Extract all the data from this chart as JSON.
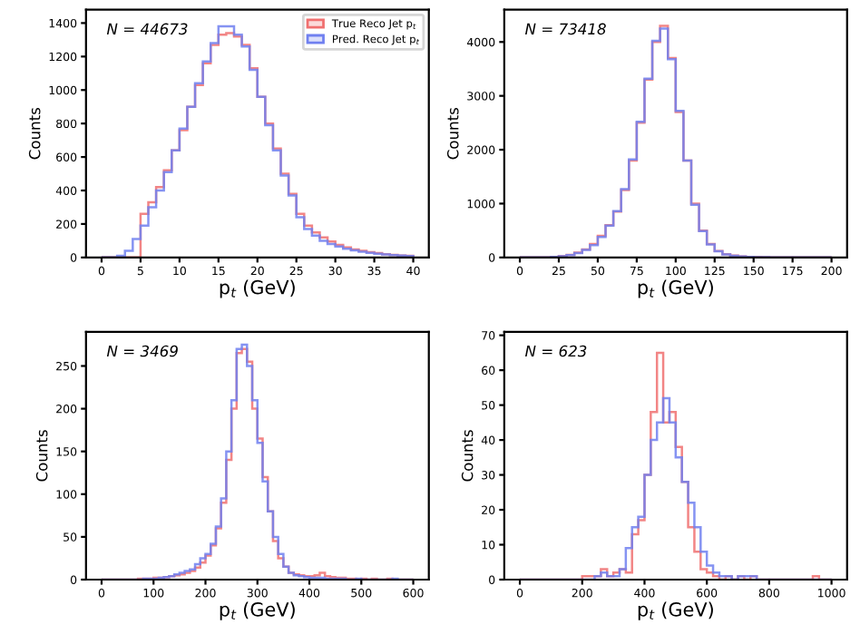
{
  "chart_data": [
    {
      "type": "histogram",
      "xlabel": "p$_{t}$ (GeV)",
      "ylabel": "Counts",
      "annotations": [
        "N = 44673"
      ],
      "xlim": [
        -2,
        42
      ],
      "xticks": [
        0,
        5,
        10,
        15,
        20,
        25,
        30,
        35,
        40
      ],
      "ylim": [
        0,
        1480
      ],
      "yticks": [
        0,
        200,
        400,
        600,
        800,
        1000,
        1200,
        1400
      ],
      "grid": false,
      "legend": "top right",
      "bins": [
        0,
        1,
        2,
        3,
        4,
        5,
        6,
        7,
        8,
        9,
        10,
        11,
        12,
        13,
        14,
        15,
        16,
        17,
        18,
        19,
        20,
        21,
        22,
        23,
        24,
        25,
        26,
        27,
        28,
        29,
        30,
        31,
        32,
        33,
        34,
        35,
        36,
        37,
        38,
        39,
        40
      ],
      "series": [
        {
          "name": "True Reco Jet p$_{t}$",
          "color": "#f07070",
          "values": [
            0,
            0,
            0,
            0,
            0,
            260,
            330,
            420,
            520,
            640,
            760,
            900,
            1030,
            1160,
            1270,
            1330,
            1340,
            1320,
            1270,
            1130,
            960,
            800,
            650,
            500,
            380,
            260,
            190,
            150,
            120,
            95,
            75,
            60,
            48,
            40,
            32,
            26,
            20,
            16,
            12,
            10
          ]
        },
        {
          "name": "Pred. Reco Jet p$_{t}$",
          "color": "#7080f0",
          "values": [
            0,
            0,
            10,
            40,
            110,
            190,
            300,
            400,
            510,
            640,
            770,
            900,
            1040,
            1170,
            1280,
            1380,
            1380,
            1330,
            1260,
            1120,
            960,
            790,
            640,
            490,
            370,
            240,
            170,
            130,
            100,
            80,
            65,
            52,
            42,
            35,
            28,
            22,
            18,
            14,
            11,
            9
          ]
        }
      ]
    },
    {
      "type": "histogram",
      "xlabel": "p$_{t}$ (GeV)",
      "ylabel": "Counts",
      "annotations": [
        "N = 73418"
      ],
      "xlim": [
        -10,
        210
      ],
      "xticks": [
        0,
        25,
        50,
        75,
        100,
        125,
        150,
        175,
        200
      ],
      "ylim": [
        0,
        4600
      ],
      "yticks": [
        0,
        1000,
        2000,
        3000,
        4000
      ],
      "grid": false,
      "bins": [
        0,
        5,
        10,
        15,
        20,
        25,
        30,
        35,
        40,
        45,
        50,
        55,
        60,
        65,
        70,
        75,
        80,
        85,
        90,
        95,
        100,
        105,
        110,
        115,
        120,
        125,
        130,
        135,
        140,
        145,
        150,
        155,
        160,
        165,
        170,
        175,
        180,
        185,
        190,
        195,
        200
      ],
      "series": [
        {
          "color": "#f07070",
          "values": [
            0,
            0,
            0,
            0,
            10,
            25,
            50,
            90,
            150,
            250,
            400,
            600,
            850,
            1250,
            1800,
            2500,
            3300,
            4000,
            4300,
            3700,
            2700,
            1800,
            1000,
            500,
            250,
            120,
            60,
            35,
            20,
            12,
            8,
            5,
            3,
            0,
            0,
            0,
            0,
            0,
            0,
            0
          ]
        },
        {
          "color": "#7080f0",
          "values": [
            0,
            0,
            0,
            0,
            8,
            22,
            45,
            80,
            140,
            230,
            380,
            590,
            860,
            1270,
            1820,
            2520,
            3320,
            4020,
            4250,
            3680,
            2720,
            1800,
            980,
            490,
            240,
            115,
            58,
            32,
            18,
            11,
            7,
            4,
            2,
            0,
            0,
            0,
            0,
            0,
            0,
            0
          ]
        }
      ]
    },
    {
      "type": "histogram",
      "xlabel": "p$_{t}$ (GeV)",
      "ylabel": "Counts",
      "annotations": [
        "N = 3469"
      ],
      "xlim": [
        -30,
        630
      ],
      "xticks": [
        0,
        100,
        200,
        300,
        400,
        500,
        600
      ],
      "ylim": [
        0,
        290
      ],
      "yticks": [
        0,
        50,
        100,
        150,
        200,
        250
      ],
      "grid": false,
      "bins": [
        0,
        10,
        20,
        30,
        40,
        50,
        60,
        70,
        80,
        90,
        100,
        110,
        120,
        130,
        140,
        150,
        160,
        170,
        180,
        190,
        200,
        210,
        220,
        230,
        240,
        250,
        260,
        270,
        280,
        290,
        300,
        310,
        320,
        330,
        340,
        350,
        360,
        370,
        380,
        390,
        400,
        410,
        420,
        430,
        440,
        450,
        460,
        470,
        480,
        490,
        500,
        510,
        520,
        530,
        540,
        550,
        560,
        570,
        580,
        590,
        600
      ],
      "series": [
        {
          "color": "#f07070",
          "values": [
            0,
            0,
            0,
            0,
            0,
            0,
            0,
            1,
            1,
            1,
            2,
            2,
            3,
            4,
            5,
            6,
            8,
            10,
            14,
            20,
            28,
            40,
            60,
            90,
            140,
            200,
            265,
            270,
            255,
            200,
            165,
            120,
            80,
            45,
            25,
            15,
            8,
            6,
            5,
            4,
            4,
            5,
            8,
            4,
            3,
            2,
            2,
            1,
            1,
            0,
            1,
            0,
            1,
            0,
            0,
            1,
            0,
            0,
            0,
            0
          ]
        },
        {
          "color": "#7080f0",
          "values": [
            0,
            0,
            0,
            0,
            0,
            0,
            0,
            0,
            1,
            1,
            1,
            2,
            3,
            4,
            6,
            8,
            10,
            12,
            18,
            25,
            30,
            42,
            62,
            95,
            150,
            210,
            270,
            275,
            250,
            210,
            160,
            115,
            80,
            50,
            30,
            15,
            8,
            5,
            4,
            3,
            2,
            2,
            2,
            1,
            1,
            1,
            1,
            0,
            0,
            1,
            0,
            0,
            0,
            0,
            0,
            0,
            1,
            0,
            0,
            0
          ]
        }
      ]
    },
    {
      "type": "histogram",
      "xlabel": "p$_{t}$ (GeV)",
      "ylabel": "Counts",
      "annotations": [
        "N = 623"
      ],
      "xlim": [
        -50,
        1050
      ],
      "xticks": [
        0,
        200,
        400,
        600,
        800,
        1000
      ],
      "ylim": [
        0,
        71
      ],
      "yticks": [
        0,
        10,
        20,
        30,
        40,
        50,
        60,
        70
      ],
      "grid": false,
      "bins": [
        0,
        20,
        40,
        60,
        80,
        100,
        120,
        140,
        160,
        180,
        200,
        220,
        240,
        260,
        280,
        300,
        320,
        340,
        360,
        380,
        400,
        420,
        440,
        460,
        480,
        500,
        520,
        540,
        560,
        580,
        600,
        620,
        640,
        660,
        680,
        700,
        720,
        740,
        760,
        780,
        800,
        820,
        840,
        860,
        880,
        900,
        920,
        940,
        960,
        980,
        1000
      ],
      "series": [
        {
          "color": "#f07070",
          "values": [
            0,
            0,
            0,
            0,
            0,
            0,
            0,
            0,
            0,
            0,
            1,
            1,
            1,
            3,
            1,
            2,
            3,
            2,
            13,
            17,
            30,
            48,
            65,
            45,
            48,
            38,
            28,
            15,
            8,
            3,
            2,
            1,
            0,
            1,
            0,
            1,
            0,
            1,
            0,
            0,
            0,
            0,
            0,
            0,
            0,
            0,
            0,
            1,
            0,
            0
          ]
        },
        {
          "color": "#7080f0",
          "values": [
            0,
            0,
            0,
            0,
            0,
            0,
            0,
            0,
            0,
            0,
            0,
            0,
            1,
            2,
            1,
            1,
            3,
            9,
            15,
            18,
            30,
            40,
            45,
            52,
            45,
            35,
            28,
            22,
            15,
            8,
            4,
            2,
            1,
            1,
            0,
            1,
            1,
            1,
            0,
            0,
            0,
            0,
            0,
            0,
            0,
            0,
            0,
            0,
            0,
            0
          ]
        }
      ]
    }
  ]
}
